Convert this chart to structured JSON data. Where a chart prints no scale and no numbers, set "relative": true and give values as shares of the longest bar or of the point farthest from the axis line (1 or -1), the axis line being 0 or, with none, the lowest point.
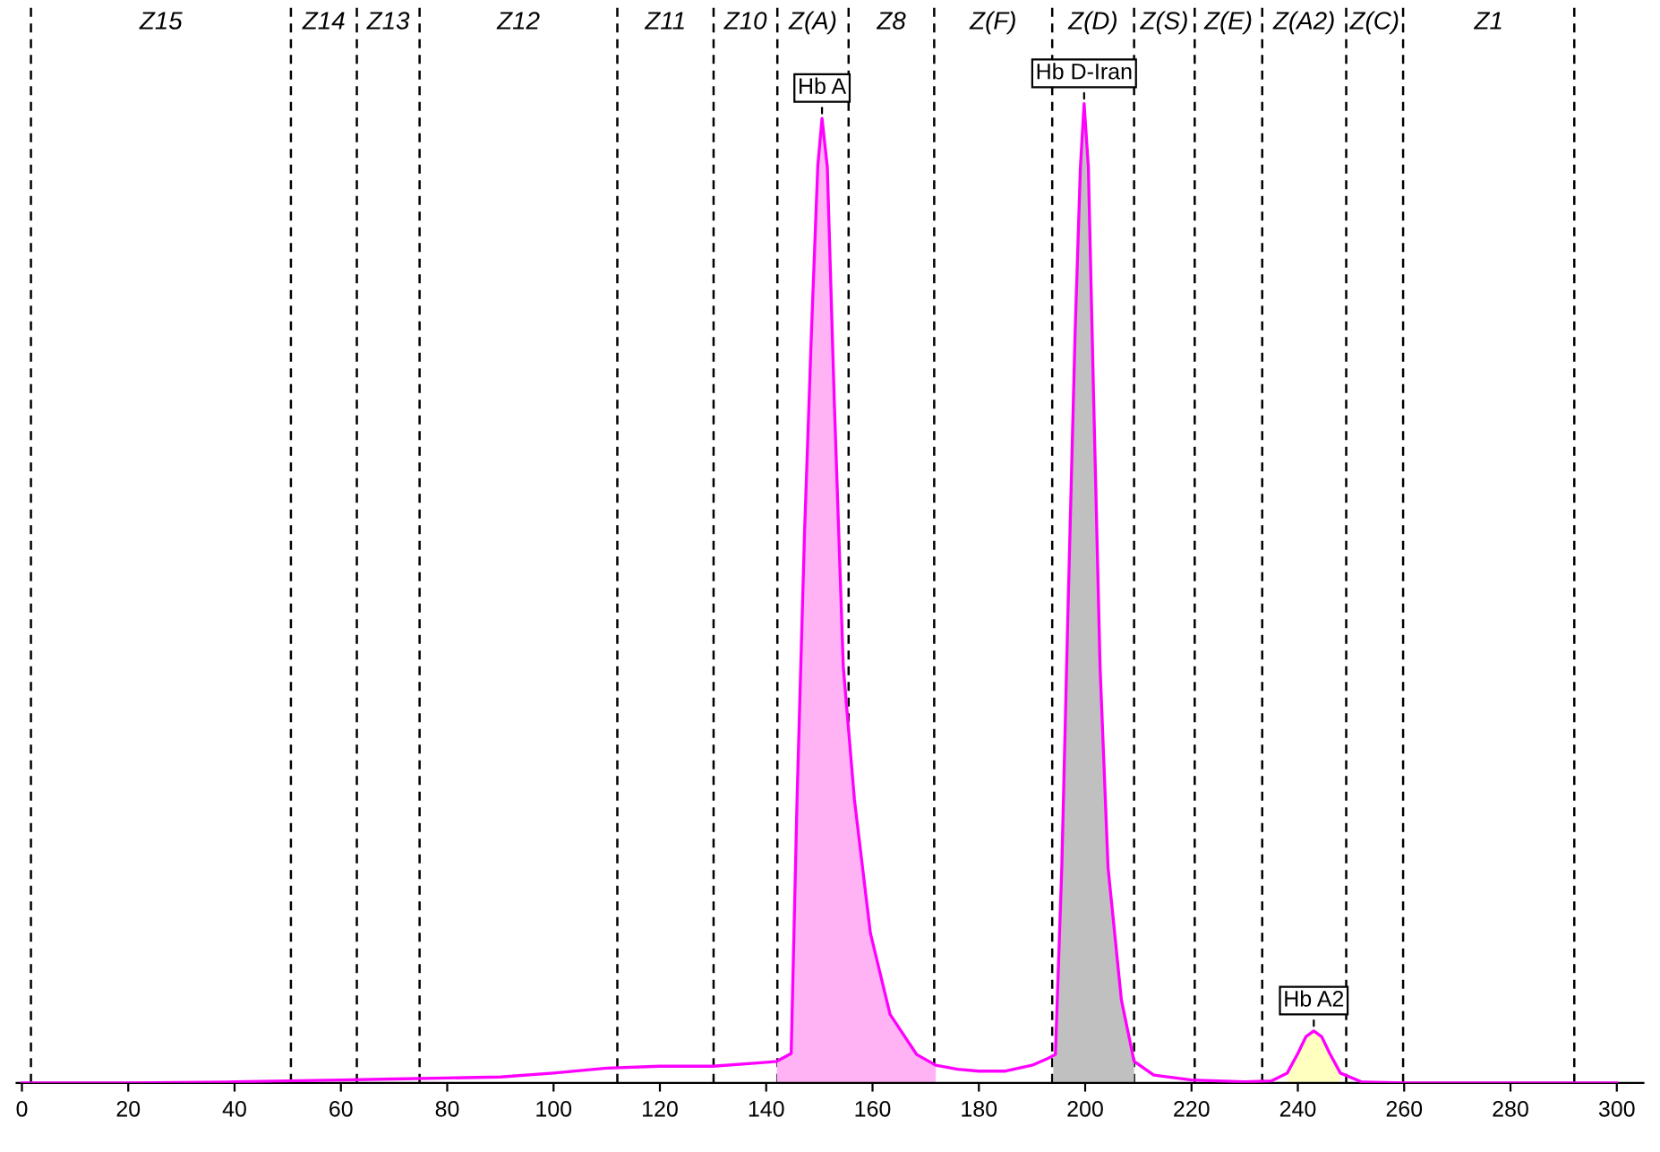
{
  "chart_data": {
    "type": "line",
    "relative": true,
    "xlim": [
      -1,
      305
    ],
    "xticks": [
      0,
      20,
      40,
      60,
      80,
      100,
      120,
      140,
      160,
      180,
      200,
      220,
      240,
      260,
      280,
      300
    ],
    "marker": "none",
    "line_style": "solid",
    "series": [
      {
        "type": "area",
        "color": "#ffb3f5",
        "x": [
          142,
          144.7,
          145.8,
          147.2,
          148.5,
          149.7,
          150.5,
          151.5,
          152.8,
          154.5,
          156.6,
          159.6,
          163.3,
          168.3,
          171.9
        ],
        "values": [
          0.022,
          0.03,
          0.289,
          0.56,
          0.765,
          0.936,
          0.985,
          0.935,
          0.697,
          0.425,
          0.289,
          0.153,
          0.07,
          0.029,
          0.018
        ]
      },
      {
        "type": "area",
        "color": "#c0c0c0",
        "x": [
          194,
          194.4,
          195.6,
          196.8,
          198.1,
          199.1,
          199.8,
          200.6,
          201.6,
          202.8,
          204.3,
          206.8,
          209.2
        ],
        "values": [
          0.026,
          0.029,
          0.22,
          0.49,
          0.765,
          0.935,
          1.0,
          0.935,
          0.697,
          0.425,
          0.22,
          0.085,
          0.022
        ]
      },
      {
        "type": "area",
        "color": "#ffffc0",
        "x": [
          238,
          240,
          241.5,
          243,
          244.5,
          246,
          248
        ],
        "values": [
          0.01,
          0.03,
          0.047,
          0.053,
          0.047,
          0.03,
          0.01
        ]
      },
      {
        "color": "#ff00ff",
        "x": [
          0,
          20,
          40,
          50,
          60,
          70,
          80,
          90,
          100,
          110,
          120,
          130,
          140,
          142,
          144.7,
          145.8,
          147.2,
          148.5,
          149.7,
          150.5,
          151.5,
          152.8,
          154.5,
          156.6,
          159.6,
          163.3,
          168.3,
          171.9,
          176,
          180,
          185,
          190,
          193,
          194.4,
          195.6,
          196.8,
          198.1,
          199.1,
          199.8,
          200.6,
          201.6,
          202.8,
          204.3,
          206.8,
          209.2,
          212.9,
          220,
          230,
          235,
          238,
          240,
          241.5,
          243,
          244.5,
          246,
          248,
          252,
          260,
          280,
          300
        ],
        "values": [
          0.0,
          0.0,
          0.001,
          0.002,
          0.003,
          0.004,
          0.005,
          0.006,
          0.01,
          0.015,
          0.017,
          0.017,
          0.021,
          0.022,
          0.03,
          0.289,
          0.56,
          0.765,
          0.936,
          0.985,
          0.935,
          0.697,
          0.425,
          0.289,
          0.153,
          0.07,
          0.029,
          0.018,
          0.014,
          0.012,
          0.012,
          0.018,
          0.025,
          0.029,
          0.22,
          0.49,
          0.765,
          0.935,
          1.0,
          0.935,
          0.697,
          0.425,
          0.22,
          0.085,
          0.022,
          0.008,
          0.003,
          0.001,
          0.002,
          0.01,
          0.03,
          0.047,
          0.053,
          0.047,
          0.03,
          0.01,
          0.001,
          0.0,
          0.0,
          0.0
        ]
      }
    ],
    "ref_lines": [
      {
        "axis": "x",
        "value": 1.7,
        "label": null,
        "line_style": "dashed"
      },
      {
        "axis": "x",
        "value": 50.6,
        "label": null,
        "line_style": "dashed"
      },
      {
        "axis": "x",
        "value": 63,
        "label": null,
        "line_style": "dashed"
      },
      {
        "axis": "x",
        "value": 74.8,
        "label": null,
        "line_style": "dashed"
      },
      {
        "axis": "x",
        "value": 112,
        "label": null,
        "line_style": "dashed"
      },
      {
        "axis": "x",
        "value": 130.1,
        "label": null,
        "line_style": "dashed"
      },
      {
        "axis": "x",
        "value": 142.1,
        "label": null,
        "line_style": "dashed"
      },
      {
        "axis": "x",
        "value": 155.5,
        "label": null,
        "line_style": "dashed"
      },
      {
        "axis": "x",
        "value": 171.6,
        "label": null,
        "line_style": "dashed"
      },
      {
        "axis": "x",
        "value": 193.8,
        "label": null,
        "line_style": "dashed"
      },
      {
        "axis": "x",
        "value": 209.2,
        "label": null,
        "line_style": "dashed"
      },
      {
        "axis": "x",
        "value": 220.6,
        "label": null,
        "line_style": "dashed"
      },
      {
        "axis": "x",
        "value": 233.3,
        "label": null,
        "line_style": "dashed"
      },
      {
        "axis": "x",
        "value": 249.1,
        "label": null,
        "line_style": "dashed"
      },
      {
        "axis": "x",
        "value": 259.8,
        "label": null,
        "line_style": "dashed"
      },
      {
        "axis": "x",
        "value": 292,
        "label": null,
        "line_style": "dashed"
      }
    ],
    "annotations": [
      "Z15",
      "Z14",
      "Z13",
      "Z12",
      "Z11",
      "Z10",
      "Z(A)",
      "Z8",
      "Z(F)",
      "Z(D)",
      "Z(S)",
      "Z(E)",
      "Z(A2)",
      "Z(C)",
      "Z1",
      {
        "text": "Hb A",
        "x": 150.5,
        "y": 0.985
      },
      {
        "text": "Hb D-Iran",
        "x": 199.8,
        "y": 1.0
      },
      {
        "text": "Hb A2",
        "x": 243,
        "y": 0.053
      }
    ]
  }
}
